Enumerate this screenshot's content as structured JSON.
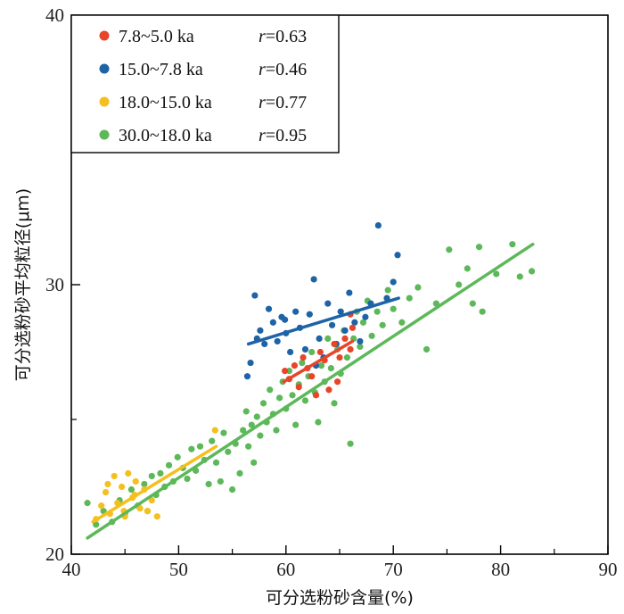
{
  "chart_data": {
    "type": "scatter",
    "xlabel": "可分选粉砂含量(%)",
    "ylabel": "可分选粉砂平均粒径(μm)",
    "xlim": [
      40,
      90
    ],
    "ylim": [
      20,
      40
    ],
    "xticks": [
      "40",
      "50",
      "60",
      "70",
      "80",
      "90"
    ],
    "yticks": [
      "20",
      "30",
      "40"
    ],
    "series": [
      {
        "name": "30.0~18.0 ka",
        "label": "30.0~18.0  ka",
        "r_label": "r",
        "r_value": "=0.95",
        "color": "#5db85a",
        "fit": [
          [
            41.5,
            20.6
          ],
          [
            83,
            31.5
          ]
        ],
        "points": [
          [
            41.5,
            21.9
          ],
          [
            42.3,
            21.1
          ],
          [
            43.0,
            21.6
          ],
          [
            43.8,
            21.2
          ],
          [
            44.5,
            22.0
          ],
          [
            45.0,
            21.5
          ],
          [
            45.6,
            22.4
          ],
          [
            46.2,
            21.8
          ],
          [
            46.8,
            22.6
          ],
          [
            47.1,
            21.6
          ],
          [
            47.5,
            22.9
          ],
          [
            47.9,
            22.2
          ],
          [
            48.3,
            23.0
          ],
          [
            48.7,
            22.5
          ],
          [
            49.1,
            23.3
          ],
          [
            49.5,
            22.7
          ],
          [
            49.9,
            23.6
          ],
          [
            50.4,
            23.2
          ],
          [
            50.8,
            22.8
          ],
          [
            51.2,
            23.9
          ],
          [
            51.6,
            23.1
          ],
          [
            52.0,
            24.0
          ],
          [
            52.4,
            23.5
          ],
          [
            52.8,
            22.6
          ],
          [
            53.1,
            24.2
          ],
          [
            53.5,
            23.4
          ],
          [
            53.9,
            22.7
          ],
          [
            54.2,
            24.5
          ],
          [
            54.6,
            23.8
          ],
          [
            55.0,
            22.4
          ],
          [
            55.3,
            24.1
          ],
          [
            55.7,
            23.0
          ],
          [
            56.0,
            24.6
          ],
          [
            56.3,
            25.3
          ],
          [
            56.5,
            24.0
          ],
          [
            56.8,
            24.8
          ],
          [
            57.0,
            23.4
          ],
          [
            57.3,
            25.1
          ],
          [
            57.6,
            24.4
          ],
          [
            57.9,
            25.6
          ],
          [
            58.2,
            24.9
          ],
          [
            58.5,
            26.1
          ],
          [
            58.8,
            25.2
          ],
          [
            59.1,
            24.6
          ],
          [
            59.4,
            25.8
          ],
          [
            59.7,
            26.4
          ],
          [
            60.0,
            25.4
          ],
          [
            60.3,
            26.8
          ],
          [
            60.6,
            25.9
          ],
          [
            60.9,
            24.8
          ],
          [
            61.2,
            26.3
          ],
          [
            61.5,
            27.1
          ],
          [
            61.8,
            25.7
          ],
          [
            62.1,
            26.6
          ],
          [
            62.4,
            27.5
          ],
          [
            62.7,
            26.0
          ],
          [
            63.0,
            24.9
          ],
          [
            63.3,
            27.0
          ],
          [
            63.6,
            26.4
          ],
          [
            63.9,
            28.0
          ],
          [
            64.2,
            26.9
          ],
          [
            64.5,
            25.6
          ],
          [
            64.8,
            27.6
          ],
          [
            65.1,
            26.7
          ],
          [
            65.4,
            28.3
          ],
          [
            65.7,
            27.3
          ],
          [
            66.0,
            24.1
          ],
          [
            66.3,
            28.0
          ],
          [
            66.6,
            29.0
          ],
          [
            66.9,
            27.7
          ],
          [
            67.2,
            28.6
          ],
          [
            67.6,
            29.4
          ],
          [
            68.0,
            28.1
          ],
          [
            68.5,
            29.0
          ],
          [
            69.0,
            28.5
          ],
          [
            69.5,
            29.8
          ],
          [
            70.0,
            29.1
          ],
          [
            70.8,
            28.6
          ],
          [
            71.5,
            29.5
          ],
          [
            72.3,
            29.9
          ],
          [
            73.1,
            27.6
          ],
          [
            74.0,
            29.3
          ],
          [
            75.2,
            31.3
          ],
          [
            76.1,
            30.0
          ],
          [
            76.9,
            30.6
          ],
          [
            77.4,
            29.3
          ],
          [
            78.0,
            31.4
          ],
          [
            78.3,
            29.0
          ],
          [
            79.6,
            30.4
          ],
          [
            81.1,
            31.5
          ],
          [
            81.8,
            30.3
          ],
          [
            82.9,
            30.5
          ]
        ]
      },
      {
        "name": "18.0~15.0 ka",
        "label": "18.0~15.0  ka",
        "r_label": "r",
        "r_value": "=0.77",
        "color": "#f5bf1e",
        "fit": [
          [
            42,
            21.2
          ],
          [
            53.5,
            24.0
          ]
        ],
        "points": [
          [
            42.3,
            21.3
          ],
          [
            42.8,
            21.8
          ],
          [
            43.2,
            22.3
          ],
          [
            43.6,
            21.5
          ],
          [
            44.0,
            22.9
          ],
          [
            44.3,
            21.9
          ],
          [
            44.7,
            22.5
          ],
          [
            45.0,
            21.4
          ],
          [
            45.3,
            23.0
          ],
          [
            45.7,
            22.1
          ],
          [
            46.0,
            22.7
          ],
          [
            46.4,
            21.7
          ],
          [
            46.8,
            22.4
          ],
          [
            47.1,
            21.6
          ],
          [
            47.5,
            22.0
          ],
          [
            48.0,
            21.4
          ],
          [
            43.4,
            22.6
          ],
          [
            44.9,
            21.6
          ],
          [
            45.9,
            22.2
          ],
          [
            53.4,
            24.6
          ]
        ]
      },
      {
        "name": "15.0~7.8 ka",
        "label": "15.0~7.8  ka",
        "r_label": "r",
        "r_value": "=0.46",
        "color": "#1e63a6",
        "fit": [
          [
            56.5,
            27.8
          ],
          [
            70.5,
            29.5
          ]
        ],
        "points": [
          [
            56.4,
            26.6
          ],
          [
            56.7,
            27.1
          ],
          [
            57.1,
            29.6
          ],
          [
            57.6,
            28.3
          ],
          [
            58.0,
            27.8
          ],
          [
            58.4,
            29.1
          ],
          [
            58.8,
            28.6
          ],
          [
            59.2,
            27.9
          ],
          [
            59.6,
            28.8
          ],
          [
            60.0,
            28.2
          ],
          [
            60.4,
            27.5
          ],
          [
            60.9,
            29.0
          ],
          [
            61.3,
            28.4
          ],
          [
            61.8,
            27.6
          ],
          [
            62.2,
            28.9
          ],
          [
            62.6,
            30.2
          ],
          [
            63.1,
            28.0
          ],
          [
            63.5,
            27.3
          ],
          [
            63.9,
            29.3
          ],
          [
            64.3,
            28.5
          ],
          [
            64.7,
            27.8
          ],
          [
            65.1,
            29.0
          ],
          [
            65.5,
            28.3
          ],
          [
            65.9,
            29.7
          ],
          [
            66.4,
            28.6
          ],
          [
            66.9,
            27.9
          ],
          [
            67.4,
            28.8
          ],
          [
            67.9,
            29.3
          ],
          [
            68.6,
            32.2
          ],
          [
            69.4,
            29.5
          ],
          [
            70.0,
            30.1
          ],
          [
            70.4,
            31.1
          ],
          [
            57.3,
            28.0
          ],
          [
            59.9,
            28.7
          ],
          [
            62.8,
            27.0
          ]
        ]
      },
      {
        "name": "7.8~5.0 ka",
        "label": "7.8~5.0  ka",
        "r_label": "r",
        "r_value": "=0.63",
        "color": "#e8442a",
        "fit": [
          [
            59.8,
            26.4
          ],
          [
            66.2,
            27.9
          ]
        ],
        "points": [
          [
            59.9,
            26.8
          ],
          [
            60.3,
            26.5
          ],
          [
            60.8,
            27.0
          ],
          [
            61.2,
            26.2
          ],
          [
            61.6,
            27.3
          ],
          [
            62.0,
            26.9
          ],
          [
            62.4,
            26.6
          ],
          [
            62.8,
            25.9
          ],
          [
            63.2,
            27.5
          ],
          [
            63.6,
            27.2
          ],
          [
            64.0,
            26.1
          ],
          [
            64.5,
            27.8
          ],
          [
            65.0,
            27.3
          ],
          [
            65.5,
            28.0
          ],
          [
            66.0,
            27.6
          ],
          [
            66.2,
            28.4
          ],
          [
            66.0,
            28.9
          ],
          [
            64.8,
            26.4
          ]
        ]
      }
    ]
  }
}
